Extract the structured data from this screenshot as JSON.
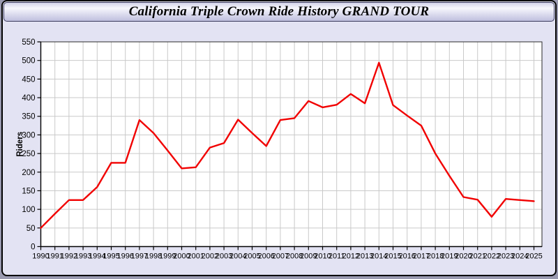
{
  "window": {
    "title": "California Triple Crown Ride History GRAND TOUR"
  },
  "chart_data": {
    "type": "line",
    "title": "California Triple Crown Ride History GRAND TOUR",
    "xlabel": "",
    "ylabel": "Riders",
    "ylim": [
      0,
      550
    ],
    "ytick_step": 50,
    "ytick_labels": [
      "0",
      "50",
      "100",
      "150",
      "200",
      "250",
      "300",
      "350",
      "400",
      "450",
      "500",
      "550"
    ],
    "grid": "on",
    "legend": "none",
    "categories": [
      "1990",
      "1991",
      "1992",
      "1993",
      "1994",
      "1995",
      "1996",
      "1997",
      "1998",
      "1999",
      "2000",
      "2001",
      "2002",
      "2003",
      "2004",
      "2005",
      "2006",
      "2007",
      "2008",
      "2009",
      "2010",
      "2011",
      "2012",
      "2013",
      "2014",
      "2015",
      "2016",
      "2017",
      "2018",
      "2019",
      "2020",
      "2021",
      "2022",
      "2023",
      "2024",
      "2025"
    ],
    "series": [
      {
        "name": "Riders",
        "color": "#f10000",
        "values": [
          50,
          88,
          125,
          125,
          160,
          225,
          225,
          340,
          305,
          258,
          210,
          213,
          266,
          278,
          341,
          305,
          270,
          340,
          345,
          391,
          374,
          381,
          410,
          385,
          494,
          380,
          352,
          325,
          250,
          190,
          133,
          126,
          80,
          128,
          125,
          122
        ]
      }
    ],
    "colors": {
      "line": "#f10000",
      "plot_background": "#ffffff",
      "page_background": "#e3e3f3",
      "grid": "#c9c9c9",
      "frame": "#2a2a2a",
      "tick_text": "#000000"
    }
  }
}
